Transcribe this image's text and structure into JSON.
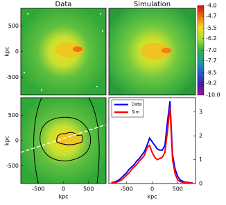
{
  "chart_data": [
    {
      "type": "heatmap",
      "title": "Data",
      "ylabel": "kpc",
      "xlim": [
        -850,
        850
      ],
      "ylim": [
        -850,
        850
      ],
      "yticks": [
        -500,
        0,
        500
      ]
    },
    {
      "type": "heatmap",
      "title": "Simulation"
    },
    {
      "type": "contour",
      "xlabel": "kpc",
      "ylabel": "kpc",
      "xlim": [
        -850,
        850
      ],
      "ylim": [
        -850,
        850
      ],
      "xticks": [
        -500,
        0,
        500
      ],
      "yticks": [
        -500,
        0,
        500
      ]
    },
    {
      "type": "line",
      "xlabel": "kpc",
      "xlim": [
        -850,
        850
      ],
      "xticks": [
        -500,
        0,
        500
      ],
      "y2lim": [
        0,
        3.6
      ],
      "y2ticks": [
        0,
        1,
        2,
        3
      ],
      "legend": "upper left",
      "x": [
        -800,
        -750,
        -700,
        -650,
        -600,
        -550,
        -500,
        -450,
        -400,
        -350,
        -300,
        -250,
        -200,
        -150,
        -100,
        -50,
        0,
        50,
        100,
        150,
        200,
        250,
        300,
        350,
        400,
        450,
        500,
        550,
        600,
        650,
        700,
        750,
        800
      ],
      "series": [
        {
          "name": "Data",
          "color": "#0000ff",
          "axis": "y2",
          "values": [
            0.05,
            0.05,
            0.1,
            0.15,
            0.25,
            0.35,
            0.45,
            0.6,
            0.7,
            0.8,
            0.95,
            1.05,
            1.2,
            1.35,
            1.6,
            1.9,
            1.75,
            1.6,
            1.45,
            1.4,
            1.4,
            1.6,
            2.6,
            3.45,
            1.2,
            0.6,
            0.3,
            0.15,
            0.1,
            0.05,
            0.05,
            0.03,
            0.02
          ]
        },
        {
          "name": "Sim",
          "color": "#ff0000",
          "axis": "y2",
          "values": [
            0.02,
            0.03,
            0.05,
            0.1,
            0.15,
            0.25,
            0.35,
            0.45,
            0.6,
            0.7,
            0.8,
            0.95,
            1.05,
            1.2,
            1.5,
            1.6,
            1.3,
            1.1,
            1.0,
            1.05,
            1.1,
            1.3,
            2.2,
            3.2,
            1.0,
            0.4,
            0.15,
            0.08,
            0.05,
            0.04,
            0.03,
            0.02,
            0.02
          ]
        }
      ]
    },
    {
      "type": "colorbar",
      "ylim": [
        -10,
        -4
      ],
      "yticks": [
        {
          "value": -4,
          "label": "-4.0"
        },
        -4.7,
        -5.5,
        -6.2,
        {
          "value": -7,
          "label": "-7.0"
        },
        -7.7,
        -8.5,
        -9.2,
        {
          "value": -10,
          "label": "-10.0"
        }
      ]
    }
  ]
}
